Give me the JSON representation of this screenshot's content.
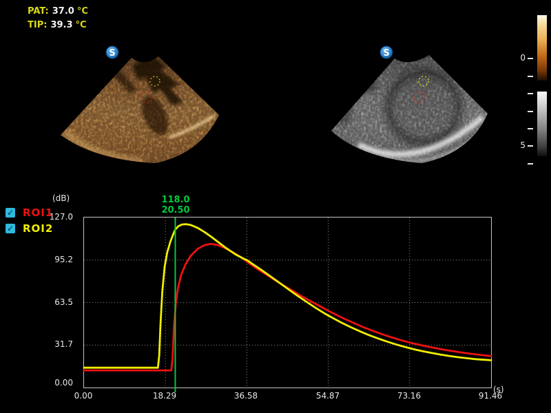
{
  "colors": {
    "roi1": "#ee1111",
    "roi2": "#f0ee00",
    "cursor": "#00cc3c",
    "checkbox": "#2fb9de",
    "axis_text": "#e8e8e8",
    "temp_label_yellow": "#d8d818",
    "temp_value_white": "#f2f2f2"
  },
  "temps": {
    "pat_label": "PAT:",
    "pat_value": "37.0",
    "pat_unit": "°C",
    "tip_label": "TIP:",
    "tip_value": "39.3",
    "tip_unit": "°C"
  },
  "logo": {
    "letter": "S"
  },
  "depth_scale": {
    "labels": [
      "0",
      "",
      "",
      "",
      "",
      "5",
      ""
    ]
  },
  "chart_data": {
    "type": "line",
    "title": "",
    "ylabel": "(dB)",
    "xlabel": "(s)",
    "ylim": [
      0,
      127
    ],
    "xlim": [
      0,
      91.46
    ],
    "yticks": [
      127,
      95.2,
      63.5,
      31.7,
      0
    ],
    "ytick_labels": [
      "127.0",
      "95.2",
      "63.5",
      "31.7",
      "0.00"
    ],
    "xticks": [
      0,
      18.29,
      36.58,
      54.87,
      73.16,
      91.46
    ],
    "xtick_labels": [
      "0.00",
      "18.29",
      "36.58",
      "54.87",
      "73.16",
      "91.46"
    ],
    "grid": true,
    "legend_position": "left-top",
    "legend": [
      {
        "label": "ROI1",
        "color": "#ee1111",
        "checked": true,
        "check_glyph": "✓"
      },
      {
        "label": "ROI2",
        "color": "#f0ee00",
        "checked": true,
        "check_glyph": "✓"
      }
    ],
    "cursor": {
      "x": 20.5,
      "value_label": "118.0",
      "time_label": "20.50"
    },
    "series": [
      {
        "name": "ROI1",
        "color": "#ee1111",
        "points": [
          [
            0,
            12.8
          ],
          [
            10,
            12.8
          ],
          [
            19.6,
            12.8
          ],
          [
            19.9,
            22
          ],
          [
            20.2,
            45
          ],
          [
            20.6,
            62
          ],
          [
            21.1,
            74
          ],
          [
            21.8,
            84
          ],
          [
            22.8,
            92
          ],
          [
            24,
            98.5
          ],
          [
            25.5,
            103.5
          ],
          [
            27,
            106.3
          ],
          [
            28.5,
            107.3
          ],
          [
            30,
            106.5
          ],
          [
            31.5,
            104.5
          ],
          [
            33.5,
            101
          ],
          [
            35.5,
            96.8
          ],
          [
            37,
            93
          ],
          [
            39,
            88.5
          ],
          [
            41,
            84.3
          ],
          [
            43,
            80
          ],
          [
            45,
            76
          ],
          [
            47,
            72
          ],
          [
            49,
            68
          ],
          [
            51,
            64.3
          ],
          [
            53,
            60.7
          ],
          [
            55,
            57.2
          ],
          [
            57,
            53.8
          ],
          [
            59,
            50.6
          ],
          [
            61,
            47.6
          ],
          [
            63,
            44.8
          ],
          [
            65,
            42.2
          ],
          [
            67,
            39.8
          ],
          [
            69,
            37.6
          ],
          [
            71,
            35.6
          ],
          [
            73.2,
            33.6
          ],
          [
            75,
            32.2
          ],
          [
            77,
            30.7
          ],
          [
            79,
            29.4
          ],
          [
            81,
            28.2
          ],
          [
            83,
            27.1
          ],
          [
            85,
            26.1
          ],
          [
            87,
            25.2
          ],
          [
            89,
            24.4
          ],
          [
            91.46,
            23.5
          ]
        ]
      },
      {
        "name": "ROI2",
        "color": "#f0ee00",
        "points": [
          [
            0,
            14.8
          ],
          [
            10,
            14.8
          ],
          [
            16.6,
            14.8
          ],
          [
            16.9,
            24
          ],
          [
            17.2,
            48
          ],
          [
            17.6,
            72
          ],
          [
            18.1,
            90
          ],
          [
            18.7,
            101
          ],
          [
            19.4,
            109
          ],
          [
            20.1,
            115
          ],
          [
            20.5,
            118
          ],
          [
            21.2,
            120.5
          ],
          [
            22,
            121.8
          ],
          [
            23,
            122
          ],
          [
            24,
            121.4
          ],
          [
            25.5,
            119.3
          ],
          [
            27,
            116.3
          ],
          [
            28.5,
            112.8
          ],
          [
            30,
            109
          ],
          [
            32,
            104
          ],
          [
            34,
            99.5
          ],
          [
            36,
            96
          ],
          [
            36.6,
            95.2
          ],
          [
            38,
            92
          ],
          [
            40,
            87.5
          ],
          [
            42,
            82.8
          ],
          [
            44,
            78
          ],
          [
            46,
            73.2
          ],
          [
            48,
            68.5
          ],
          [
            50,
            64
          ],
          [
            52,
            59.6
          ],
          [
            54,
            55.5
          ],
          [
            56,
            51.7
          ],
          [
            58,
            48.2
          ],
          [
            60,
            45
          ],
          [
            62,
            42
          ],
          [
            64,
            39.2
          ],
          [
            66,
            36.7
          ],
          [
            68,
            34.4
          ],
          [
            70,
            32.3
          ],
          [
            72,
            30.4
          ],
          [
            74,
            28.7
          ],
          [
            76,
            27.2
          ],
          [
            78,
            25.9
          ],
          [
            80,
            24.7
          ],
          [
            82,
            23.6
          ],
          [
            84,
            22.7
          ],
          [
            86,
            21.9
          ],
          [
            88,
            21.2
          ],
          [
            90,
            20.7
          ],
          [
            91.46,
            20.4
          ]
        ]
      }
    ]
  }
}
